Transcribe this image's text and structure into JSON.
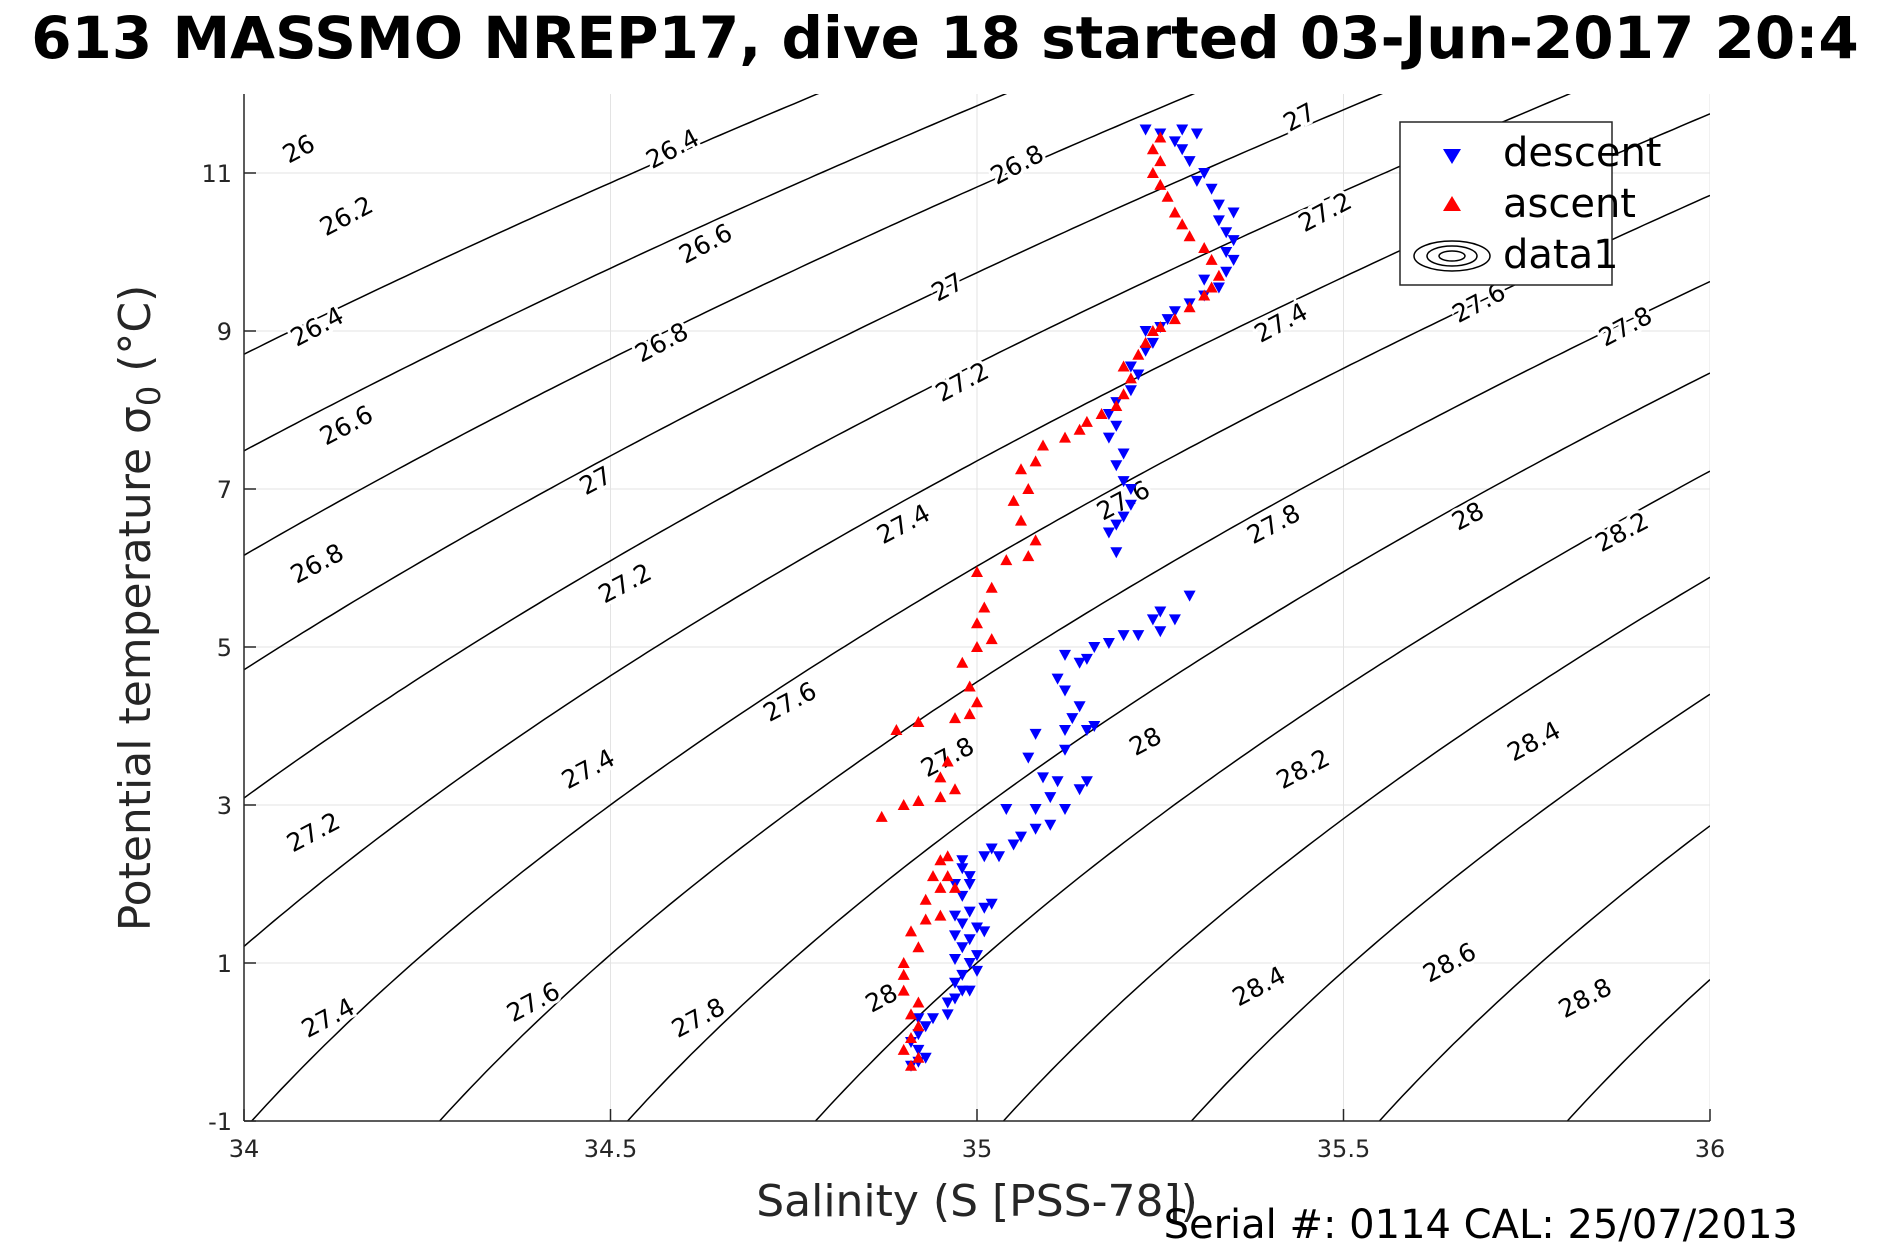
{
  "title": "613 MASSMO NREP17, dive 18 started 03-Jun-2017 20:4",
  "serial_text": "Serial #: 0114  CAL: 25/07/2013",
  "colors": {
    "descent": "#0000ff",
    "ascent": "#ff0000",
    "contour": "#000000",
    "grid": "#e3e3e3"
  },
  "chart_data": {
    "type": "scatter",
    "title": "613 MASSMO NREP17, dive 18 started 03-Jun-2017 20:4",
    "xlabel": "Salinity (S [PSS-78])",
    "ylabel": "Potential temperature σ",
    "ylabel_sub": "0",
    "ylabel_unit": " (°C)",
    "xlim": [
      34,
      36
    ],
    "ylim": [
      -1,
      12
    ],
    "xticks": [
      34,
      34.5,
      35,
      35.5,
      36
    ],
    "xtick_labels": [
      "34",
      "34.5",
      "35",
      "35.5",
      "36"
    ],
    "yticks": [
      -1,
      1,
      3,
      5,
      7,
      9,
      11
    ],
    "ytick_labels": [
      "-1",
      "1",
      "3",
      "5",
      "7",
      "9",
      "11"
    ],
    "grid": true,
    "legend_position": "top-right",
    "legend": [
      "descent",
      "ascent",
      "data1"
    ],
    "contour_levels": [
      26,
      26.2,
      26.4,
      26.6,
      26.8,
      27,
      27.2,
      27.4,
      27.6,
      27.8,
      28,
      28.2,
      28.4,
      28.6,
      28.8
    ],
    "contour_labels": [
      {
        "text": "26",
        "S": 34.075,
        "T": 11.3
      },
      {
        "text": "26.2",
        "S": 34.14,
        "T": 10.45
      },
      {
        "text": "26.4",
        "S": 34.1,
        "T": 9.05
      },
      {
        "text": "26.6",
        "S": 34.14,
        "T": 7.8
      },
      {
        "text": "26.8",
        "S": 34.1,
        "T": 6.05
      },
      {
        "text": "26.4",
        "S": 34.585,
        "T": 11.3
      },
      {
        "text": "26.6",
        "S": 34.63,
        "T": 10.1
      },
      {
        "text": "26.8",
        "S": 34.57,
        "T": 8.85
      },
      {
        "text": "27",
        "S": 34.48,
        "T": 7.1
      },
      {
        "text": "27.2",
        "S": 34.52,
        "T": 5.8
      },
      {
        "text": "27.4",
        "S": 34.47,
        "T": 3.45
      },
      {
        "text": "27.2",
        "S": 34.095,
        "T": 2.65
      },
      {
        "text": "27.4",
        "S": 34.115,
        "T": 0.3
      },
      {
        "text": "27.6",
        "S": 34.395,
        "T": 0.5
      },
      {
        "text": "27.8",
        "S": 34.62,
        "T": 0.3
      },
      {
        "text": "26.8",
        "S": 35.055,
        "T": 11.1
      },
      {
        "text": "27",
        "S": 34.96,
        "T": 9.55
      },
      {
        "text": "27.2",
        "S": 34.98,
        "T": 8.35
      },
      {
        "text": "27.4",
        "S": 34.9,
        "T": 6.55
      },
      {
        "text": "27.6",
        "S": 34.745,
        "T": 4.3
      },
      {
        "text": "27.8",
        "S": 34.96,
        "T": 3.6
      },
      {
        "text": "28",
        "S": 34.87,
        "T": 0.55
      },
      {
        "text": "27",
        "S": 35.44,
        "T": 11.7
      },
      {
        "text": "27.2",
        "S": 35.475,
        "T": 10.5
      },
      {
        "text": "27.4",
        "S": 35.415,
        "T": 9.1
      },
      {
        "text": "27.6",
        "S": 35.2,
        "T": 6.85
      },
      {
        "text": "27.8",
        "S": 35.405,
        "T": 6.55
      },
      {
        "text": "28",
        "S": 35.23,
        "T": 3.8
      },
      {
        "text": "28.2",
        "S": 35.445,
        "T": 3.45
      },
      {
        "text": "28.4",
        "S": 35.385,
        "T": 0.7
      },
      {
        "text": "27.6",
        "S": 35.685,
        "T": 9.35
      },
      {
        "text": "27.8",
        "S": 35.885,
        "T": 9.05
      },
      {
        "text": "28",
        "S": 35.67,
        "T": 6.65
      },
      {
        "text": "28.2",
        "S": 35.88,
        "T": 6.45
      },
      {
        "text": "28.4",
        "S": 35.76,
        "T": 3.8
      },
      {
        "text": "28.6",
        "S": 35.645,
        "T": 1.0
      },
      {
        "text": "28.8",
        "S": 35.83,
        "T": 0.55
      }
    ],
    "series": [
      {
        "name": "descent",
        "marker": "triangle-down",
        "points": [
          [
            34.91,
            -0.3
          ],
          [
            34.92,
            -0.25
          ],
          [
            34.93,
            -0.2
          ],
          [
            34.92,
            -0.1
          ],
          [
            34.91,
            0.0
          ],
          [
            34.92,
            0.1
          ],
          [
            34.93,
            0.2
          ],
          [
            34.92,
            0.3
          ],
          [
            34.94,
            0.3
          ],
          [
            34.96,
            0.35
          ],
          [
            34.96,
            0.5
          ],
          [
            34.97,
            0.55
          ],
          [
            34.98,
            0.65
          ],
          [
            34.99,
            0.65
          ],
          [
            34.97,
            0.75
          ],
          [
            34.98,
            0.85
          ],
          [
            35.0,
            0.9
          ],
          [
            34.99,
            1.0
          ],
          [
            34.97,
            1.05
          ],
          [
            35.0,
            1.1
          ],
          [
            34.98,
            1.2
          ],
          [
            34.99,
            1.3
          ],
          [
            34.97,
            1.35
          ],
          [
            35.01,
            1.4
          ],
          [
            35.0,
            1.45
          ],
          [
            34.98,
            1.5
          ],
          [
            34.97,
            1.6
          ],
          [
            34.99,
            1.65
          ],
          [
            35.01,
            1.7
          ],
          [
            35.02,
            1.75
          ],
          [
            34.98,
            1.85
          ],
          [
            34.97,
            2.0
          ],
          [
            34.99,
            2.0
          ],
          [
            34.99,
            2.1
          ],
          [
            34.98,
            2.2
          ],
          [
            34.98,
            2.3
          ],
          [
            35.01,
            2.35
          ],
          [
            35.03,
            2.35
          ],
          [
            35.02,
            2.45
          ],
          [
            35.05,
            2.5
          ],
          [
            35.06,
            2.6
          ],
          [
            35.08,
            2.7
          ],
          [
            35.1,
            2.75
          ],
          [
            35.04,
            2.95
          ],
          [
            35.08,
            2.95
          ],
          [
            35.12,
            2.95
          ],
          [
            35.1,
            3.1
          ],
          [
            35.14,
            3.2
          ],
          [
            35.11,
            3.3
          ],
          [
            35.15,
            3.3
          ],
          [
            35.09,
            3.35
          ],
          [
            35.07,
            3.6
          ],
          [
            35.12,
            3.7
          ],
          [
            35.08,
            3.9
          ],
          [
            35.12,
            3.95
          ],
          [
            35.15,
            3.95
          ],
          [
            35.16,
            4.0
          ],
          [
            35.13,
            4.1
          ],
          [
            35.14,
            4.25
          ],
          [
            35.12,
            4.45
          ],
          [
            35.11,
            4.6
          ],
          [
            35.14,
            4.8
          ],
          [
            35.15,
            4.85
          ],
          [
            35.12,
            4.9
          ],
          [
            35.16,
            5.0
          ],
          [
            35.18,
            5.05
          ],
          [
            35.2,
            5.15
          ],
          [
            35.22,
            5.15
          ],
          [
            35.25,
            5.2
          ],
          [
            35.24,
            5.35
          ],
          [
            35.27,
            5.35
          ],
          [
            35.25,
            5.45
          ],
          [
            35.29,
            5.65
          ],
          [
            35.19,
            6.2
          ],
          [
            35.18,
            6.45
          ],
          [
            35.19,
            6.55
          ],
          [
            35.2,
            6.65
          ],
          [
            35.21,
            6.8
          ],
          [
            35.21,
            7.0
          ],
          [
            35.2,
            7.1
          ],
          [
            35.19,
            7.3
          ],
          [
            35.2,
            7.45
          ],
          [
            35.18,
            7.65
          ],
          [
            35.19,
            7.8
          ],
          [
            35.18,
            7.95
          ],
          [
            35.19,
            8.1
          ],
          [
            35.21,
            8.25
          ],
          [
            35.22,
            8.45
          ],
          [
            35.21,
            8.55
          ],
          [
            35.23,
            8.75
          ],
          [
            35.24,
            8.85
          ],
          [
            35.23,
            9.0
          ],
          [
            35.25,
            9.05
          ],
          [
            35.26,
            9.15
          ],
          [
            35.27,
            9.25
          ],
          [
            35.29,
            9.35
          ],
          [
            35.31,
            9.45
          ],
          [
            35.33,
            9.55
          ],
          [
            35.31,
            9.65
          ],
          [
            35.34,
            9.75
          ],
          [
            35.35,
            9.9
          ],
          [
            35.34,
            10.0
          ],
          [
            35.35,
            10.15
          ],
          [
            35.34,
            10.25
          ],
          [
            35.33,
            10.4
          ],
          [
            35.35,
            10.5
          ],
          [
            35.33,
            10.6
          ],
          [
            35.32,
            10.8
          ],
          [
            35.3,
            10.9
          ],
          [
            35.31,
            11.0
          ],
          [
            35.29,
            11.15
          ],
          [
            35.28,
            11.3
          ],
          [
            35.27,
            11.4
          ],
          [
            35.28,
            11.55
          ],
          [
            35.25,
            11.5
          ],
          [
            35.3,
            11.5
          ],
          [
            35.23,
            11.55
          ]
        ]
      },
      {
        "name": "ascent",
        "marker": "triangle-up",
        "points": [
          [
            34.91,
            -0.3
          ],
          [
            34.92,
            -0.2
          ],
          [
            34.9,
            -0.1
          ],
          [
            34.91,
            0.05
          ],
          [
            34.92,
            0.2
          ],
          [
            34.91,
            0.35
          ],
          [
            34.92,
            0.5
          ],
          [
            34.9,
            0.65
          ],
          [
            34.9,
            0.85
          ],
          [
            34.9,
            1.0
          ],
          [
            34.92,
            1.2
          ],
          [
            34.91,
            1.4
          ],
          [
            34.93,
            1.55
          ],
          [
            34.95,
            1.6
          ],
          [
            34.93,
            1.8
          ],
          [
            34.95,
            1.95
          ],
          [
            34.94,
            2.1
          ],
          [
            34.95,
            2.3
          ],
          [
            34.96,
            2.1
          ],
          [
            34.97,
            1.95
          ],
          [
            34.96,
            2.35
          ],
          [
            34.87,
            2.85
          ],
          [
            34.9,
            3.0
          ],
          [
            34.92,
            3.05
          ],
          [
            34.95,
            3.1
          ],
          [
            34.97,
            3.2
          ],
          [
            34.95,
            3.35
          ],
          [
            34.96,
            3.55
          ],
          [
            34.89,
            3.95
          ],
          [
            34.92,
            4.05
          ],
          [
            34.97,
            4.1
          ],
          [
            34.99,
            4.15
          ],
          [
            35.0,
            4.3
          ],
          [
            34.99,
            4.5
          ],
          [
            34.98,
            4.8
          ],
          [
            35.0,
            5.0
          ],
          [
            35.02,
            5.1
          ],
          [
            35.0,
            5.3
          ],
          [
            35.01,
            5.5
          ],
          [
            35.02,
            5.75
          ],
          [
            35.0,
            5.95
          ],
          [
            35.04,
            6.1
          ],
          [
            35.07,
            6.15
          ],
          [
            35.08,
            6.35
          ],
          [
            35.06,
            6.6
          ],
          [
            35.05,
            6.85
          ],
          [
            35.07,
            7.0
          ],
          [
            35.06,
            7.25
          ],
          [
            35.08,
            7.35
          ],
          [
            35.09,
            7.55
          ],
          [
            35.12,
            7.65
          ],
          [
            35.14,
            7.75
          ],
          [
            35.15,
            7.85
          ],
          [
            35.17,
            7.95
          ],
          [
            35.19,
            8.05
          ],
          [
            35.2,
            8.2
          ],
          [
            35.21,
            8.4
          ],
          [
            35.2,
            8.55
          ],
          [
            35.22,
            8.7
          ],
          [
            35.23,
            8.85
          ],
          [
            35.24,
            9.0
          ],
          [
            35.25,
            9.05
          ],
          [
            35.27,
            9.15
          ],
          [
            35.29,
            9.3
          ],
          [
            35.31,
            9.45
          ],
          [
            35.32,
            9.55
          ],
          [
            35.33,
            9.7
          ],
          [
            35.32,
            9.9
          ],
          [
            35.31,
            10.05
          ],
          [
            35.29,
            10.2
          ],
          [
            35.28,
            10.35
          ],
          [
            35.27,
            10.5
          ],
          [
            35.26,
            10.7
          ],
          [
            35.25,
            10.85
          ],
          [
            35.24,
            11.0
          ],
          [
            35.25,
            11.15
          ],
          [
            35.24,
            11.3
          ],
          [
            35.25,
            11.45
          ]
        ]
      }
    ]
  }
}
